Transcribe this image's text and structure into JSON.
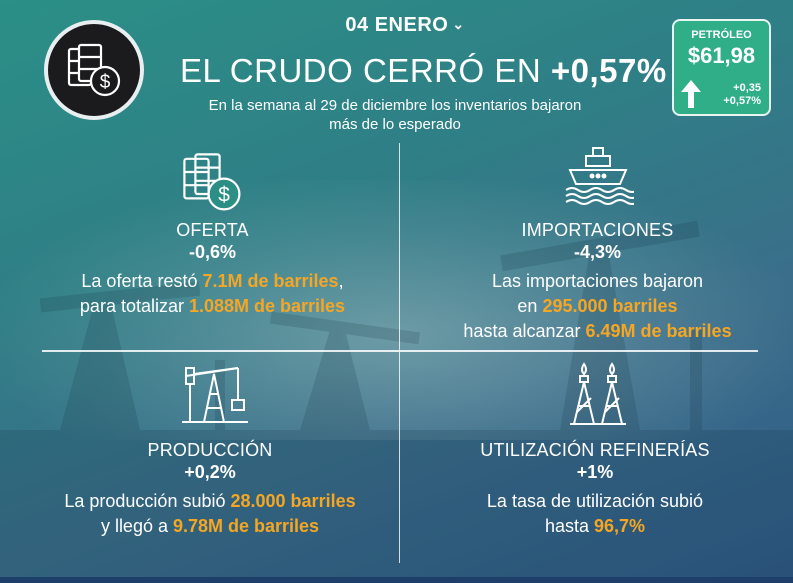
{
  "header": {
    "date": "04 ENERO",
    "headline_prefix": "EL CRUDO CERRÓ EN",
    "headline_value": "+0,57%",
    "intro_line1": "En la semana al 29 de diciembre los inventarios bajaron",
    "intro_line2": "más de lo esperado"
  },
  "price_box": {
    "label": "PETRÓLEO",
    "value": "$61,98",
    "change_abs": "+0,35",
    "change_pct": "+0,57%"
  },
  "panels": {
    "oferta": {
      "title": "OFERTA",
      "pct": "-0,6%",
      "line1_a": "La oferta restó ",
      "line1_hl": "7.1M de barriles",
      "line1_b": ",",
      "line2_a": "para totalizar ",
      "line2_hl": "1.088M de barriles"
    },
    "importaciones": {
      "title": "IMPORTACIONES",
      "pct": "-4,3%",
      "line1": "Las importaciones bajaron",
      "line2_a": "en ",
      "line2_hl": "295.000 barriles",
      "line3_a": "hasta alcanzar ",
      "line3_hl": "6.49M de barriles"
    },
    "produccion": {
      "title": "PRODUCCIÓN",
      "pct": "+0,2%",
      "line1_a": "La producción subió ",
      "line1_hl": "28.000 barriles",
      "line2_a": "y llegó a ",
      "line2_hl": "9.78M de barriles"
    },
    "refinerias": {
      "title": "UTILIZACIÓN REFINERÍAS",
      "pct": "+1%",
      "line1": "La tasa de utilización subió",
      "line2_a": "hasta ",
      "line2_hl": "96,7%"
    }
  },
  "colors": {
    "highlight": "#f5a623",
    "price_box": "#2fae88",
    "emblem": "#1b1b1d"
  },
  "icons": {
    "emblem": "barrels-dollar-icon",
    "oferta": "barrels-dollar-icon",
    "importaciones": "tanker-ship-icon",
    "produccion": "pumpjack-icon",
    "refinerias": "refinery-towers-icon",
    "price_arrow": "arrow-up-icon"
  }
}
